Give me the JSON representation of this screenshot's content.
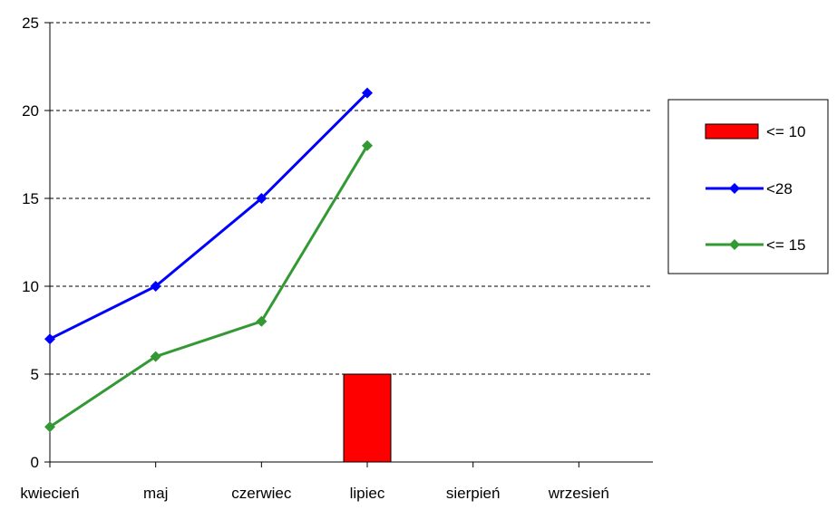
{
  "chart_data": {
    "type": "bar",
    "categories": [
      "kwiecień",
      "maj",
      "czerwiec",
      "lipiec",
      "sierpień",
      "wrzesień"
    ],
    "series": [
      {
        "name": "<= 10",
        "kind": "bar",
        "color": "#ff0000",
        "values": [
          null,
          null,
          null,
          5,
          null,
          null
        ]
      },
      {
        "name": "<28",
        "kind": "line",
        "marker": "diamond",
        "color": "#0000ff",
        "values": [
          7,
          10,
          15,
          21,
          null,
          null
        ]
      },
      {
        "name": "<= 15",
        "kind": "line",
        "marker": "diamond",
        "color": "#339933",
        "values": [
          2,
          6,
          8,
          18,
          null,
          null
        ]
      }
    ],
    "ylim": [
      0,
      25
    ],
    "yticks": [
      "0",
      "5",
      "10",
      "15",
      "20",
      "25"
    ],
    "grid": "horizontal-dashed",
    "legend": "right"
  }
}
